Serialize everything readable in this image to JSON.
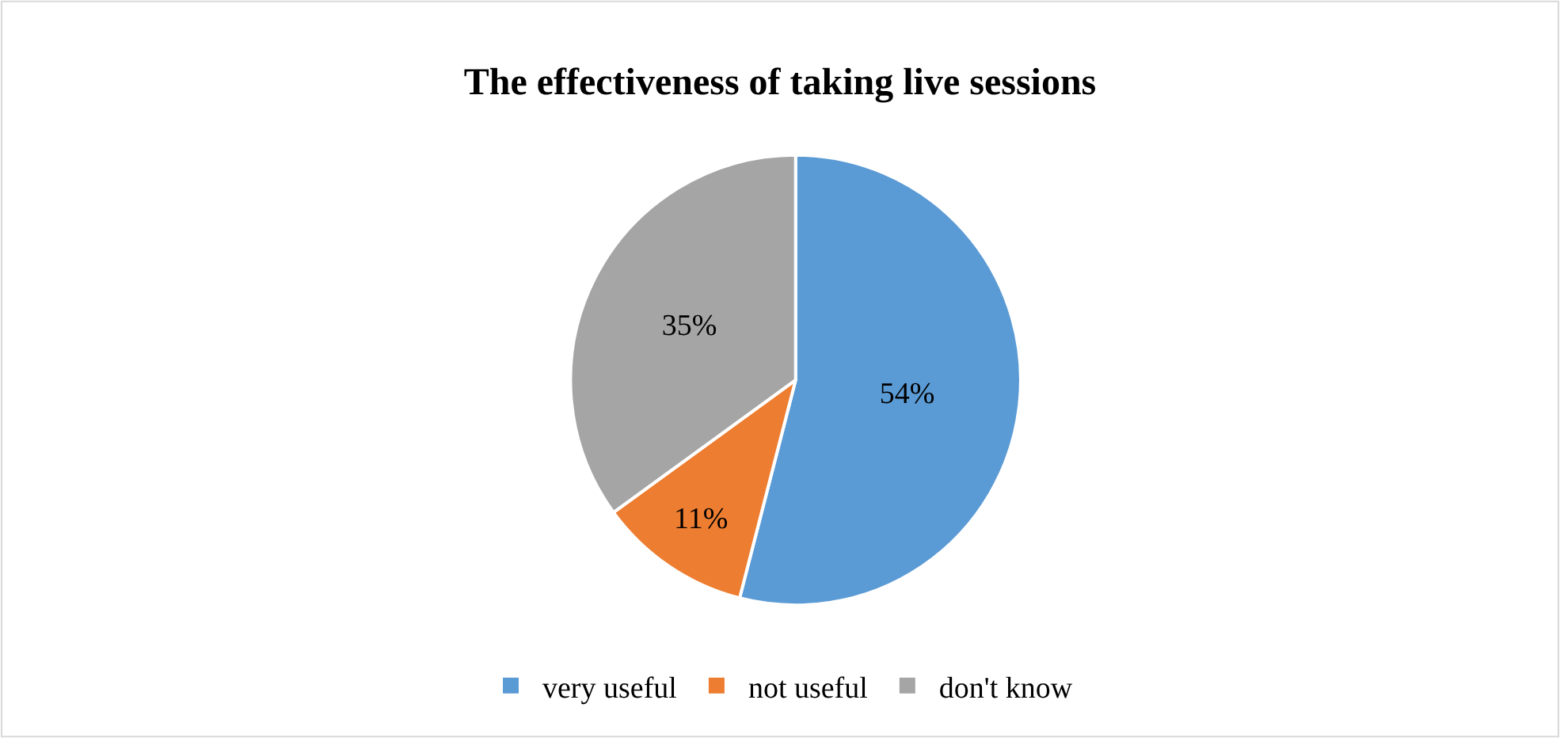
{
  "chart_data": {
    "type": "pie",
    "title": "The effectiveness of taking live sessions",
    "categories": [
      "very useful",
      "not useful",
      "don't know"
    ],
    "values": [
      54,
      11,
      35
    ],
    "colors": [
      "#5b9bd5",
      "#ed7d31",
      "#a5a5a5"
    ],
    "value_labels": [
      "54%",
      "11%",
      "35%"
    ],
    "legend": "bottom"
  }
}
